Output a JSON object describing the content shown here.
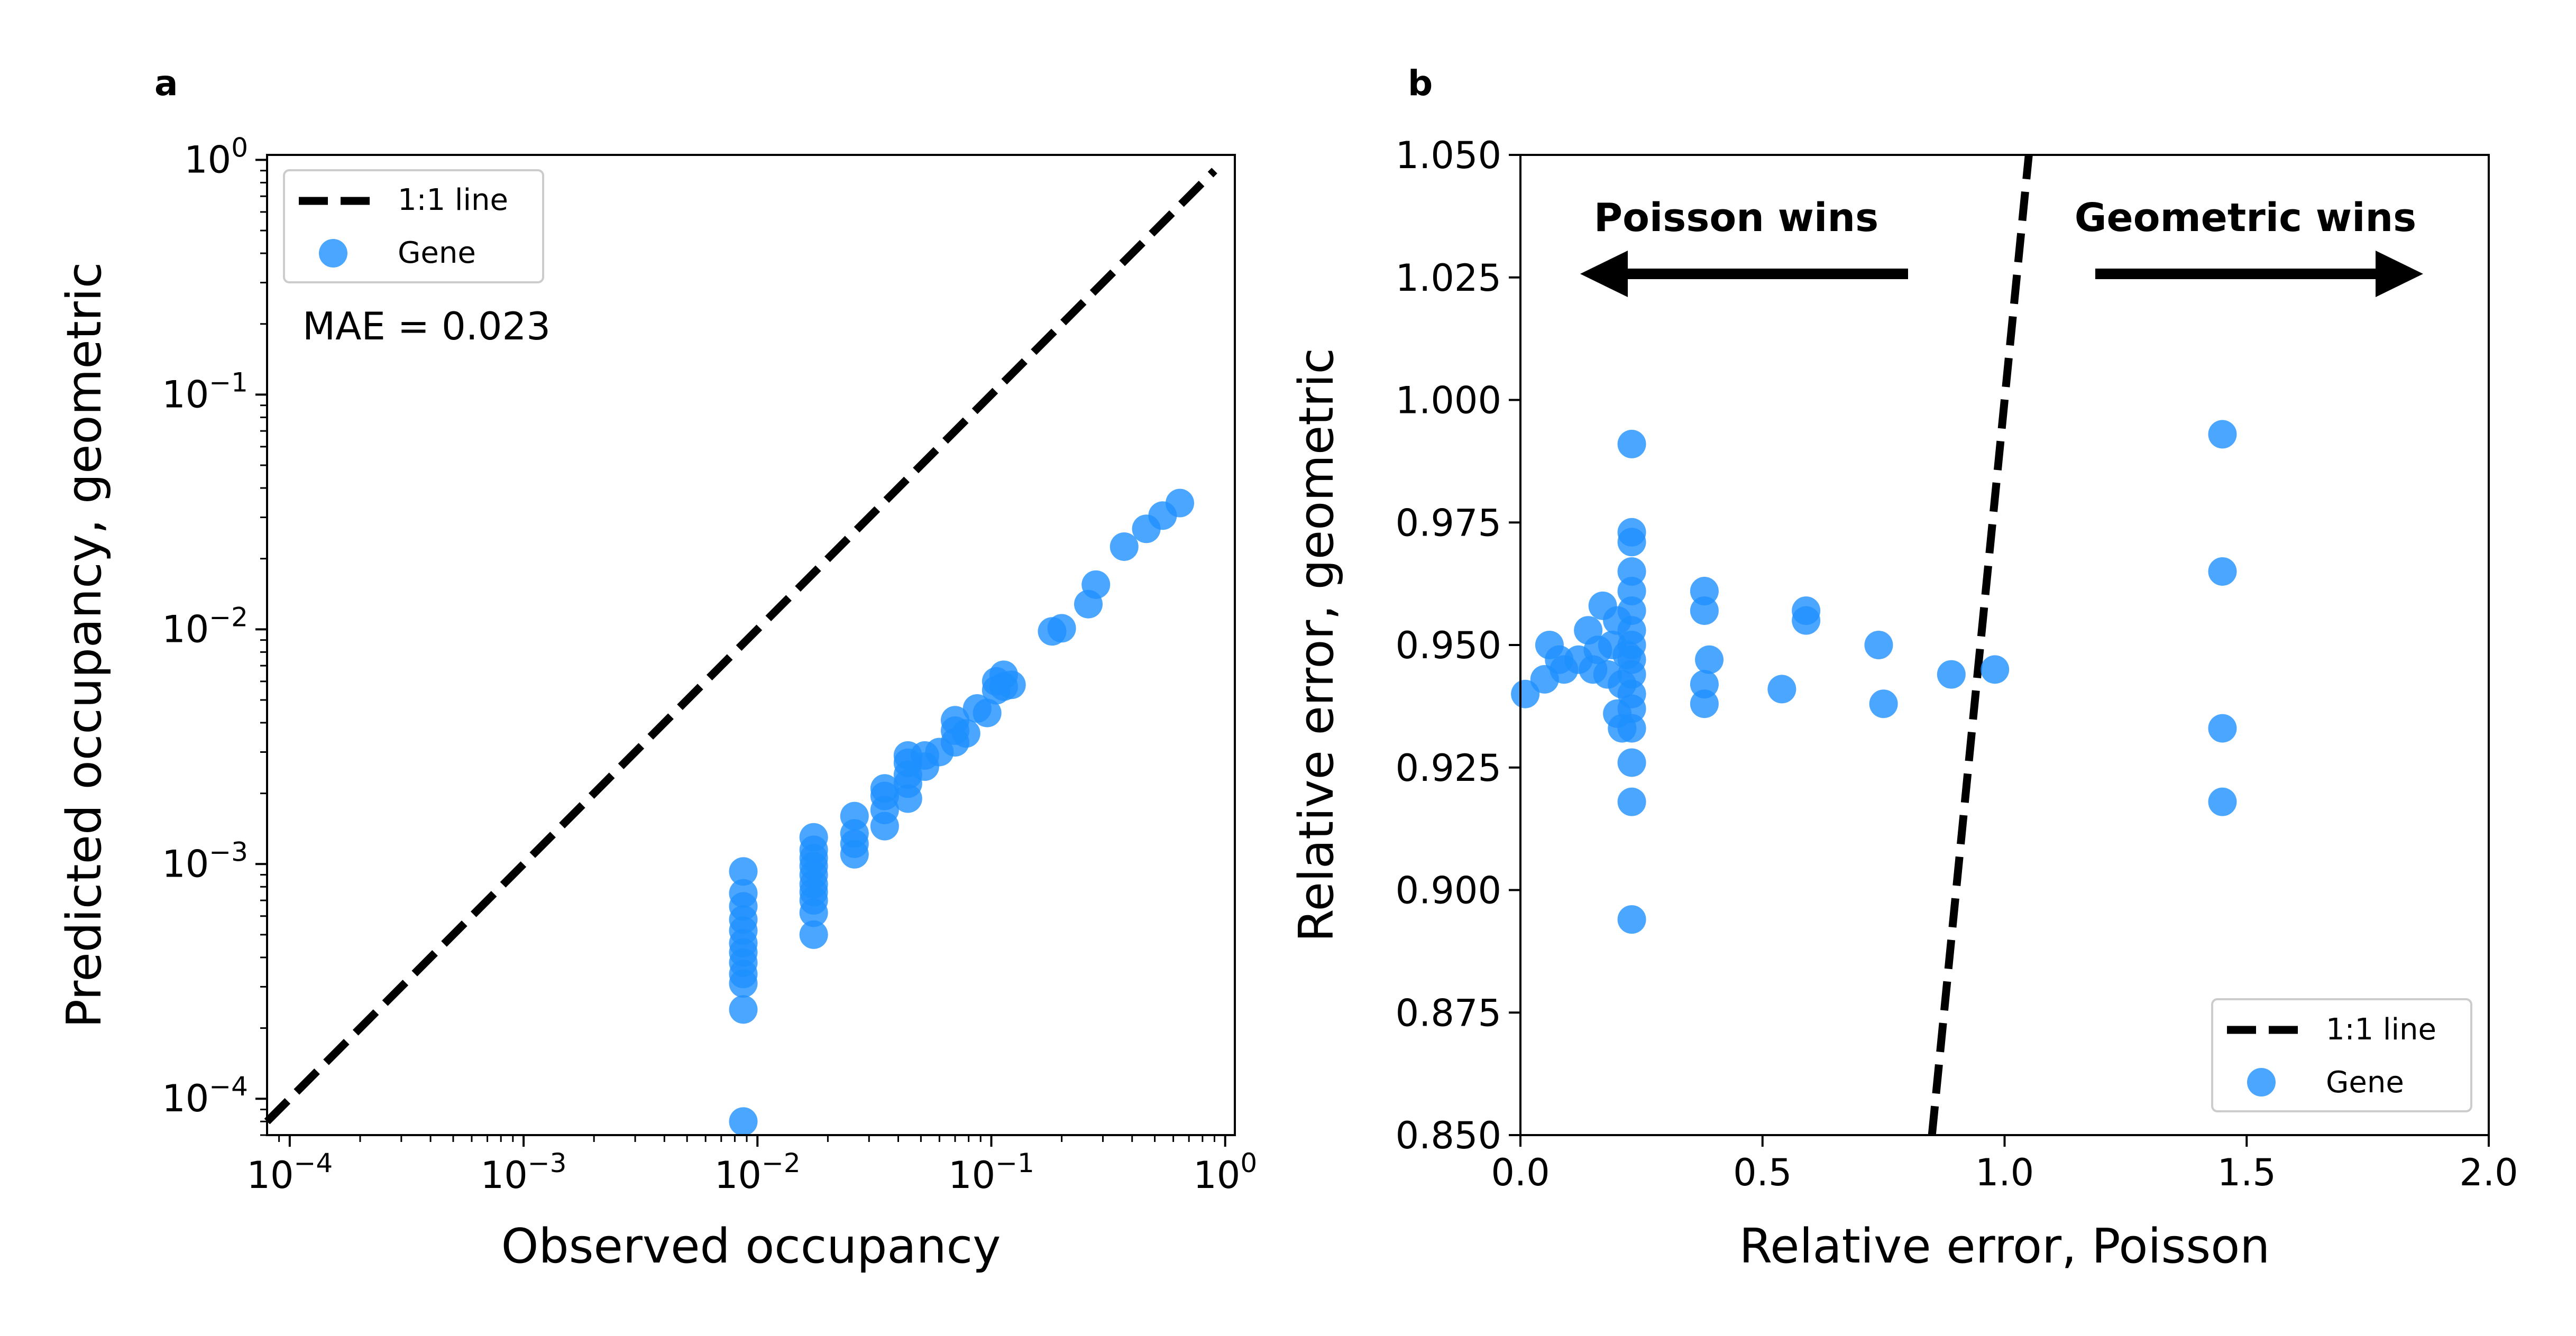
{
  "chart_data": [
    {
      "panel_label": "a",
      "type": "scatter",
      "xlabel": "Observed occupancy",
      "ylabel": "Predicted occupancy, geometric",
      "xscale": "log",
      "yscale": "log",
      "xlim": [
        8e-05,
        1.1
      ],
      "ylim": [
        7e-05,
        1.05
      ],
      "xticks": [
        {
          "value": 0.0001,
          "base": "10",
          "exp": "−4"
        },
        {
          "value": 0.001,
          "base": "10",
          "exp": "−3"
        },
        {
          "value": 0.01,
          "base": "10",
          "exp": "−2"
        },
        {
          "value": 0.1,
          "base": "10",
          "exp": "−1"
        },
        {
          "value": 1,
          "base": "10",
          "exp": "0"
        }
      ],
      "yticks": [
        {
          "value": 0.0001,
          "base": "10",
          "exp": "−4"
        },
        {
          "value": 0.001,
          "base": "10",
          "exp": "−3"
        },
        {
          "value": 0.01,
          "base": "10",
          "exp": "−2"
        },
        {
          "value": 0.1,
          "base": "10",
          "exp": "−1"
        },
        {
          "value": 1,
          "base": "10",
          "exp": "0"
        }
      ],
      "reference_line": {
        "name": "1:1 line",
        "x": [
          8e-05,
          0.9
        ],
        "y": [
          8e-05,
          0.9
        ]
      },
      "annotation": "MAE = 0.023",
      "legend": {
        "position": "upper left",
        "entries": [
          "1:1 line",
          "Gene"
        ]
      },
      "series": [
        {
          "name": "Gene",
          "color": "#1E90FF",
          "points": [
            [
              0.0087,
              8e-05
            ],
            [
              0.0087,
              0.00024
            ],
            [
              0.0087,
              0.00031
            ],
            [
              0.0087,
              0.00034
            ],
            [
              0.0087,
              0.00038
            ],
            [
              0.0087,
              0.00042
            ],
            [
              0.0087,
              0.00046
            ],
            [
              0.0087,
              0.00052
            ],
            [
              0.0087,
              0.00058
            ],
            [
              0.0087,
              0.00066
            ],
            [
              0.0087,
              0.00075
            ],
            [
              0.0087,
              0.00093
            ],
            [
              0.0174,
              0.0005
            ],
            [
              0.0174,
              0.00062
            ],
            [
              0.0174,
              0.0007
            ],
            [
              0.0174,
              0.00076
            ],
            [
              0.0174,
              0.00082
            ],
            [
              0.0174,
              0.0009
            ],
            [
              0.0174,
              0.00098
            ],
            [
              0.0174,
              0.00106
            ],
            [
              0.0174,
              0.00115
            ],
            [
              0.0174,
              0.0013
            ],
            [
              0.026,
              0.0011
            ],
            [
              0.026,
              0.00122
            ],
            [
              0.026,
              0.00135
            ],
            [
              0.026,
              0.0016
            ],
            [
              0.035,
              0.00145
            ],
            [
              0.035,
              0.0017
            ],
            [
              0.035,
              0.00195
            ],
            [
              0.035,
              0.0021
            ],
            [
              0.044,
              0.0019
            ],
            [
              0.044,
              0.0022
            ],
            [
              0.044,
              0.0024
            ],
            [
              0.044,
              0.0027
            ],
            [
              0.044,
              0.0029
            ],
            [
              0.052,
              0.0026
            ],
            [
              0.052,
              0.0029
            ],
            [
              0.06,
              0.003
            ],
            [
              0.07,
              0.0033
            ],
            [
              0.07,
              0.0037
            ],
            [
              0.07,
              0.0041
            ],
            [
              0.078,
              0.0036
            ],
            [
              0.087,
              0.0046
            ],
            [
              0.096,
              0.0044
            ],
            [
              0.105,
              0.0055
            ],
            [
              0.105,
              0.006
            ],
            [
              0.113,
              0.0057
            ],
            [
              0.113,
              0.0064
            ],
            [
              0.122,
              0.0058
            ],
            [
              0.182,
              0.0098
            ],
            [
              0.2,
              0.0101
            ],
            [
              0.26,
              0.0128
            ],
            [
              0.28,
              0.0155
            ],
            [
              0.37,
              0.0225
            ],
            [
              0.46,
              0.0268
            ],
            [
              0.54,
              0.0305
            ],
            [
              0.64,
              0.0345
            ]
          ]
        }
      ]
    },
    {
      "panel_label": "b",
      "type": "scatter",
      "xlabel": "Relative error, Poisson",
      "ylabel": "Relative error, geometric",
      "xlim": [
        0.0,
        2.0
      ],
      "ylim": [
        0.85,
        1.05
      ],
      "xticks": [
        "0.0",
        "0.5",
        "1.0",
        "1.5",
        "2.0"
      ],
      "yticks": [
        "0.850",
        "0.875",
        "0.900",
        "0.925",
        "0.950",
        "0.975",
        "1.000",
        "1.025",
        "1.050"
      ],
      "reference_line": {
        "name": "1:1 line",
        "x": [
          0.85,
          1.05
        ],
        "y": [
          0.85,
          1.05
        ]
      },
      "annotations": [
        {
          "text": "Poisson wins",
          "arrow": "left"
        },
        {
          "text": "Geometric wins",
          "arrow": "right"
        }
      ],
      "legend": {
        "position": "lower right",
        "entries": [
          "1:1 line",
          "Gene"
        ]
      },
      "series": [
        {
          "name": "Gene",
          "color": "#1E90FF",
          "points": [
            [
              0.01,
              0.94
            ],
            [
              0.05,
              0.943
            ],
            [
              0.06,
              0.95
            ],
            [
              0.08,
              0.947
            ],
            [
              0.09,
              0.945
            ],
            [
              0.12,
              0.947
            ],
            [
              0.14,
              0.953
            ],
            [
              0.15,
              0.945
            ],
            [
              0.16,
              0.949
            ],
            [
              0.17,
              0.958
            ],
            [
              0.18,
              0.944
            ],
            [
              0.19,
              0.95
            ],
            [
              0.2,
              0.955
            ],
            [
              0.21,
              0.942
            ],
            [
              0.22,
              0.948
            ],
            [
              0.2,
              0.936
            ],
            [
              0.21,
              0.933
            ],
            [
              0.23,
              0.991
            ],
            [
              0.23,
              0.973
            ],
            [
              0.23,
              0.971
            ],
            [
              0.23,
              0.965
            ],
            [
              0.23,
              0.961
            ],
            [
              0.23,
              0.957
            ],
            [
              0.23,
              0.953
            ],
            [
              0.23,
              0.95
            ],
            [
              0.23,
              0.947
            ],
            [
              0.23,
              0.944
            ],
            [
              0.23,
              0.94
            ],
            [
              0.23,
              0.937
            ],
            [
              0.23,
              0.933
            ],
            [
              0.23,
              0.926
            ],
            [
              0.23,
              0.918
            ],
            [
              0.23,
              0.894
            ],
            [
              0.38,
              0.961
            ],
            [
              0.38,
              0.957
            ],
            [
              0.39,
              0.947
            ],
            [
              0.38,
              0.942
            ],
            [
              0.38,
              0.938
            ],
            [
              0.54,
              0.941
            ],
            [
              0.59,
              0.957
            ],
            [
              0.59,
              0.955
            ],
            [
              0.74,
              0.95
            ],
            [
              0.75,
              0.938
            ],
            [
              0.89,
              0.944
            ],
            [
              0.98,
              0.945
            ],
            [
              1.45,
              0.993
            ],
            [
              1.45,
              0.965
            ],
            [
              1.45,
              0.933
            ],
            [
              1.45,
              0.918
            ]
          ]
        }
      ]
    }
  ]
}
